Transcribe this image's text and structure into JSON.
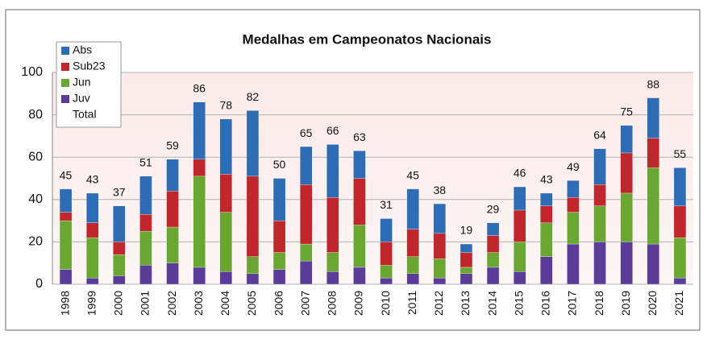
{
  "chart_data": {
    "type": "stacked_bar",
    "title": "Medalhas em Campeonatos Nacionais",
    "categories": [
      "1998",
      "1999",
      "2000",
      "2001",
      "2002",
      "2003",
      "2004",
      "2005",
      "2006",
      "2007",
      "2008",
      "2009",
      "2010",
      "2011",
      "2012",
      "2013",
      "2014",
      "2015",
      "2016",
      "2017",
      "2018",
      "2019",
      "2020",
      "2021"
    ],
    "series": [
      {
        "name": "Juv",
        "color": "#5b3c98",
        "values": [
          7,
          3,
          4,
          9,
          10,
          8,
          6,
          5,
          7,
          11,
          6,
          8,
          3,
          5,
          3,
          5,
          8,
          6,
          13,
          19,
          20,
          20,
          19,
          3
        ]
      },
      {
        "name": "Jun",
        "color": "#6aa632",
        "values": [
          23,
          19,
          10,
          16,
          17,
          43,
          28,
          8,
          8,
          8,
          9,
          20,
          6,
          8,
          9,
          3,
          7,
          14,
          16,
          15,
          17,
          23,
          36,
          19
        ]
      },
      {
        "name": "Sub23",
        "color": "#c0262b",
        "values": [
          4,
          7,
          6,
          8,
          17,
          8,
          18,
          38,
          15,
          28,
          26,
          22,
          11,
          13,
          12,
          7,
          8,
          15,
          8,
          7,
          10,
          19,
          14,
          15
        ]
      },
      {
        "name": "Abs",
        "color": "#2e6db5",
        "values": [
          11,
          14,
          17,
          18,
          15,
          27,
          26,
          31,
          20,
          18,
          25,
          13,
          11,
          19,
          14,
          4,
          6,
          11,
          6,
          8,
          17,
          13,
          19,
          18
        ]
      }
    ],
    "totals": {
      "name": "Total",
      "values": [
        45,
        43,
        37,
        51,
        59,
        86,
        78,
        82,
        50,
        65,
        66,
        63,
        31,
        45,
        38,
        19,
        29,
        46,
        43,
        49,
        64,
        75,
        88,
        55
      ]
    },
    "ylim": [
      0,
      100
    ],
    "yticks": [
      0,
      20,
      40,
      60,
      80,
      100
    ],
    "grid": true
  }
}
